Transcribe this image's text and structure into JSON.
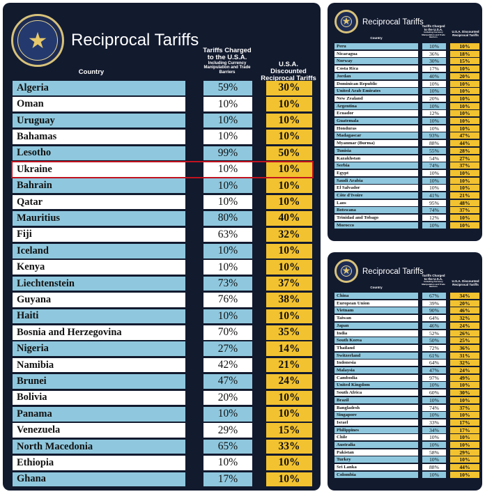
{
  "colors": {
    "panel_bg": "#121a2e",
    "row_blue": "#8fc8de",
    "row_white": "#ffffff",
    "reciprocal_yellow": "#f2c230",
    "highlight_red": "#c1121f",
    "title_text": "#ffffff"
  },
  "icon": "presidential-seal",
  "chart_data": [
    {
      "type": "table",
      "title": "Reciprocal Tariffs",
      "columns": [
        "Country",
        "Tariffs Charged to the U.S.A.",
        "U.S.A. Discounted Reciprocal Tariffs"
      ],
      "header": {
        "country": "Country",
        "charged_main": "Tariffs Charged to the U.S.A.",
        "charged_sub": "Including Currency Manipulation and Trade Barriers",
        "reciprocal": "U.S.A. Discounted Reciprocal Tariffs"
      },
      "highlighted_row": "Ukraine",
      "rows": [
        {
          "country": "Algeria",
          "charged": "59%",
          "reciprocal": "30%",
          "charged_value": 59,
          "reciprocal_value": 30
        },
        {
          "country": "Oman",
          "charged": "10%",
          "reciprocal": "10%",
          "charged_value": 10,
          "reciprocal_value": 10
        },
        {
          "country": "Uruguay",
          "charged": "10%",
          "reciprocal": "10%",
          "charged_value": 10,
          "reciprocal_value": 10
        },
        {
          "country": "Bahamas",
          "charged": "10%",
          "reciprocal": "10%",
          "charged_value": 10,
          "reciprocal_value": 10
        },
        {
          "country": "Lesotho",
          "charged": "99%",
          "reciprocal": "50%",
          "charged_value": 99,
          "reciprocal_value": 50
        },
        {
          "country": "Ukraine",
          "charged": "10%",
          "reciprocal": "10%",
          "charged_value": 10,
          "reciprocal_value": 10
        },
        {
          "country": "Bahrain",
          "charged": "10%",
          "reciprocal": "10%",
          "charged_value": 10,
          "reciprocal_value": 10
        },
        {
          "country": "Qatar",
          "charged": "10%",
          "reciprocal": "10%",
          "charged_value": 10,
          "reciprocal_value": 10
        },
        {
          "country": "Mauritius",
          "charged": "80%",
          "reciprocal": "40%",
          "charged_value": 80,
          "reciprocal_value": 40
        },
        {
          "country": "Fiji",
          "charged": "63%",
          "reciprocal": "32%",
          "charged_value": 63,
          "reciprocal_value": 32
        },
        {
          "country": "Iceland",
          "charged": "10%",
          "reciprocal": "10%",
          "charged_value": 10,
          "reciprocal_value": 10
        },
        {
          "country": "Kenya",
          "charged": "10%",
          "reciprocal": "10%",
          "charged_value": 10,
          "reciprocal_value": 10
        },
        {
          "country": "Liechtenstein",
          "charged": "73%",
          "reciprocal": "37%",
          "charged_value": 73,
          "reciprocal_value": 37
        },
        {
          "country": "Guyana",
          "charged": "76%",
          "reciprocal": "38%",
          "charged_value": 76,
          "reciprocal_value": 38
        },
        {
          "country": "Haiti",
          "charged": "10%",
          "reciprocal": "10%",
          "charged_value": 10,
          "reciprocal_value": 10
        },
        {
          "country": "Bosnia and Herzegovina",
          "charged": "70%",
          "reciprocal": "35%",
          "charged_value": 70,
          "reciprocal_value": 35
        },
        {
          "country": "Nigeria",
          "charged": "27%",
          "reciprocal": "14%",
          "charged_value": 27,
          "reciprocal_value": 14
        },
        {
          "country": "Namibia",
          "charged": "42%",
          "reciprocal": "21%",
          "charged_value": 42,
          "reciprocal_value": 21
        },
        {
          "country": "Brunei",
          "charged": "47%",
          "reciprocal": "24%",
          "charged_value": 47,
          "reciprocal_value": 24
        },
        {
          "country": "Bolivia",
          "charged": "20%",
          "reciprocal": "10%",
          "charged_value": 20,
          "reciprocal_value": 10
        },
        {
          "country": "Panama",
          "charged": "10%",
          "reciprocal": "10%",
          "charged_value": 10,
          "reciprocal_value": 10
        },
        {
          "country": "Venezuela",
          "charged": "29%",
          "reciprocal": "15%",
          "charged_value": 29,
          "reciprocal_value": 15
        },
        {
          "country": "North Macedonia",
          "charged": "65%",
          "reciprocal": "33%",
          "charged_value": 65,
          "reciprocal_value": 33
        },
        {
          "country": "Ethiopia",
          "charged": "10%",
          "reciprocal": "10%",
          "charged_value": 10,
          "reciprocal_value": 10
        },
        {
          "country": "Ghana",
          "charged": "17%",
          "reciprocal": "10%",
          "charged_value": 17,
          "reciprocal_value": 10
        }
      ]
    },
    {
      "type": "table",
      "title": "Reciprocal Tariffs",
      "columns": [
        "Country",
        "Tariffs Charged to the U.S.A.",
        "U.S.A. Discounted Reciprocal Tariffs"
      ],
      "header": {
        "country": "Country",
        "charged_main": "Tariffs Charged to the U.S.A.",
        "charged_sub": "Including Currency Manipulation and Trade Barriers",
        "reciprocal": "U.S.A. Discounted Reciprocal Tariffs"
      },
      "rows": [
        {
          "country": "Peru",
          "charged": "10%",
          "reciprocal": "10%",
          "charged_value": 10,
          "reciprocal_value": 10
        },
        {
          "country": "Nicaragua",
          "charged": "36%",
          "reciprocal": "18%",
          "charged_value": 36,
          "reciprocal_value": 18
        },
        {
          "country": "Norway",
          "charged": "30%",
          "reciprocal": "15%",
          "charged_value": 30,
          "reciprocal_value": 15
        },
        {
          "country": "Costa Rica",
          "charged": "17%",
          "reciprocal": "10%",
          "charged_value": 17,
          "reciprocal_value": 10
        },
        {
          "country": "Jordan",
          "charged": "40%",
          "reciprocal": "20%",
          "charged_value": 40,
          "reciprocal_value": 20
        },
        {
          "country": "Dominican Republic",
          "charged": "10%",
          "reciprocal": "10%",
          "charged_value": 10,
          "reciprocal_value": 10
        },
        {
          "country": "United Arab Emirates",
          "charged": "10%",
          "reciprocal": "10%",
          "charged_value": 10,
          "reciprocal_value": 10
        },
        {
          "country": "New Zealand",
          "charged": "20%",
          "reciprocal": "10%",
          "charged_value": 20,
          "reciprocal_value": 10
        },
        {
          "country": "Argentina",
          "charged": "10%",
          "reciprocal": "10%",
          "charged_value": 10,
          "reciprocal_value": 10
        },
        {
          "country": "Ecuador",
          "charged": "12%",
          "reciprocal": "10%",
          "charged_value": 12,
          "reciprocal_value": 10
        },
        {
          "country": "Guatemala",
          "charged": "10%",
          "reciprocal": "10%",
          "charged_value": 10,
          "reciprocal_value": 10
        },
        {
          "country": "Honduras",
          "charged": "10%",
          "reciprocal": "10%",
          "charged_value": 10,
          "reciprocal_value": 10
        },
        {
          "country": "Madagascar",
          "charged": "93%",
          "reciprocal": "47%",
          "charged_value": 93,
          "reciprocal_value": 47
        },
        {
          "country": "Myanmar (Burma)",
          "charged": "88%",
          "reciprocal": "44%",
          "charged_value": 88,
          "reciprocal_value": 44
        },
        {
          "country": "Tunisia",
          "charged": "55%",
          "reciprocal": "28%",
          "charged_value": 55,
          "reciprocal_value": 28
        },
        {
          "country": "Kazakhstan",
          "charged": "54%",
          "reciprocal": "27%",
          "charged_value": 54,
          "reciprocal_value": 27
        },
        {
          "country": "Serbia",
          "charged": "74%",
          "reciprocal": "37%",
          "charged_value": 74,
          "reciprocal_value": 37
        },
        {
          "country": "Egypt",
          "charged": "10%",
          "reciprocal": "10%",
          "charged_value": 10,
          "reciprocal_value": 10
        },
        {
          "country": "Saudi Arabia",
          "charged": "10%",
          "reciprocal": "10%",
          "charged_value": 10,
          "reciprocal_value": 10
        },
        {
          "country": "El Salvador",
          "charged": "10%",
          "reciprocal": "10%",
          "charged_value": 10,
          "reciprocal_value": 10
        },
        {
          "country": "Côte d'Ivoire",
          "charged": "41%",
          "reciprocal": "21%",
          "charged_value": 41,
          "reciprocal_value": 21
        },
        {
          "country": "Laos",
          "charged": "95%",
          "reciprocal": "48%",
          "charged_value": 95,
          "reciprocal_value": 48
        },
        {
          "country": "Botswana",
          "charged": "74%",
          "reciprocal": "37%",
          "charged_value": 74,
          "reciprocal_value": 37
        },
        {
          "country": "Trinidad and Tobago",
          "charged": "12%",
          "reciprocal": "10%",
          "charged_value": 12,
          "reciprocal_value": 10
        },
        {
          "country": "Morocco",
          "charged": "10%",
          "reciprocal": "10%",
          "charged_value": 10,
          "reciprocal_value": 10
        }
      ]
    },
    {
      "type": "table",
      "title": "Reciprocal Tariffs",
      "columns": [
        "Country",
        "Tariffs Charged to the U.S.A.",
        "U.S.A. Discounted Reciprocal Tariffs"
      ],
      "header": {
        "country": "Country",
        "charged_main": "Tariffs Charged to the U.S.A.",
        "charged_sub": "Including Currency Manipulation and Trade Barriers",
        "reciprocal": "U.S.A. Discounted Reciprocal Tariffs"
      },
      "rows": [
        {
          "country": "China",
          "charged": "67%",
          "reciprocal": "34%",
          "charged_value": 67,
          "reciprocal_value": 34
        },
        {
          "country": "European Union",
          "charged": "39%",
          "reciprocal": "20%",
          "charged_value": 39,
          "reciprocal_value": 20
        },
        {
          "country": "Vietnam",
          "charged": "90%",
          "reciprocal": "46%",
          "charged_value": 90,
          "reciprocal_value": 46
        },
        {
          "country": "Taiwan",
          "charged": "64%",
          "reciprocal": "32%",
          "charged_value": 64,
          "reciprocal_value": 32
        },
        {
          "country": "Japan",
          "charged": "46%",
          "reciprocal": "24%",
          "charged_value": 46,
          "reciprocal_value": 24
        },
        {
          "country": "India",
          "charged": "52%",
          "reciprocal": "26%",
          "charged_value": 52,
          "reciprocal_value": 26
        },
        {
          "country": "South Korea",
          "charged": "50%",
          "reciprocal": "25%",
          "charged_value": 50,
          "reciprocal_value": 25
        },
        {
          "country": "Thailand",
          "charged": "72%",
          "reciprocal": "36%",
          "charged_value": 72,
          "reciprocal_value": 36
        },
        {
          "country": "Switzerland",
          "charged": "61%",
          "reciprocal": "31%",
          "charged_value": 61,
          "reciprocal_value": 31
        },
        {
          "country": "Indonesia",
          "charged": "64%",
          "reciprocal": "32%",
          "charged_value": 64,
          "reciprocal_value": 32
        },
        {
          "country": "Malaysia",
          "charged": "47%",
          "reciprocal": "24%",
          "charged_value": 47,
          "reciprocal_value": 24
        },
        {
          "country": "Cambodia",
          "charged": "97%",
          "reciprocal": "49%",
          "charged_value": 97,
          "reciprocal_value": 49
        },
        {
          "country": "United Kingdom",
          "charged": "10%",
          "reciprocal": "10%",
          "charged_value": 10,
          "reciprocal_value": 10
        },
        {
          "country": "South Africa",
          "charged": "60%",
          "reciprocal": "30%",
          "charged_value": 60,
          "reciprocal_value": 30
        },
        {
          "country": "Brazil",
          "charged": "10%",
          "reciprocal": "10%",
          "charged_value": 10,
          "reciprocal_value": 10
        },
        {
          "country": "Bangladesh",
          "charged": "74%",
          "reciprocal": "37%",
          "charged_value": 74,
          "reciprocal_value": 37
        },
        {
          "country": "Singapore",
          "charged": "10%",
          "reciprocal": "10%",
          "charged_value": 10,
          "reciprocal_value": 10
        },
        {
          "country": "Israel",
          "charged": "33%",
          "reciprocal": "17%",
          "charged_value": 33,
          "reciprocal_value": 17
        },
        {
          "country": "Philippines",
          "charged": "34%",
          "reciprocal": "17%",
          "charged_value": 34,
          "reciprocal_value": 17
        },
        {
          "country": "Chile",
          "charged": "10%",
          "reciprocal": "10%",
          "charged_value": 10,
          "reciprocal_value": 10
        },
        {
          "country": "Australia",
          "charged": "10%",
          "reciprocal": "10%",
          "charged_value": 10,
          "reciprocal_value": 10
        },
        {
          "country": "Pakistan",
          "charged": "58%",
          "reciprocal": "29%",
          "charged_value": 58,
          "reciprocal_value": 29
        },
        {
          "country": "Turkey",
          "charged": "10%",
          "reciprocal": "10%",
          "charged_value": 10,
          "reciprocal_value": 10
        },
        {
          "country": "Sri Lanka",
          "charged": "88%",
          "reciprocal": "44%",
          "charged_value": 88,
          "reciprocal_value": 44
        },
        {
          "country": "Colombia",
          "charged": "10%",
          "reciprocal": "10%",
          "charged_value": 10,
          "reciprocal_value": 10
        }
      ]
    }
  ]
}
